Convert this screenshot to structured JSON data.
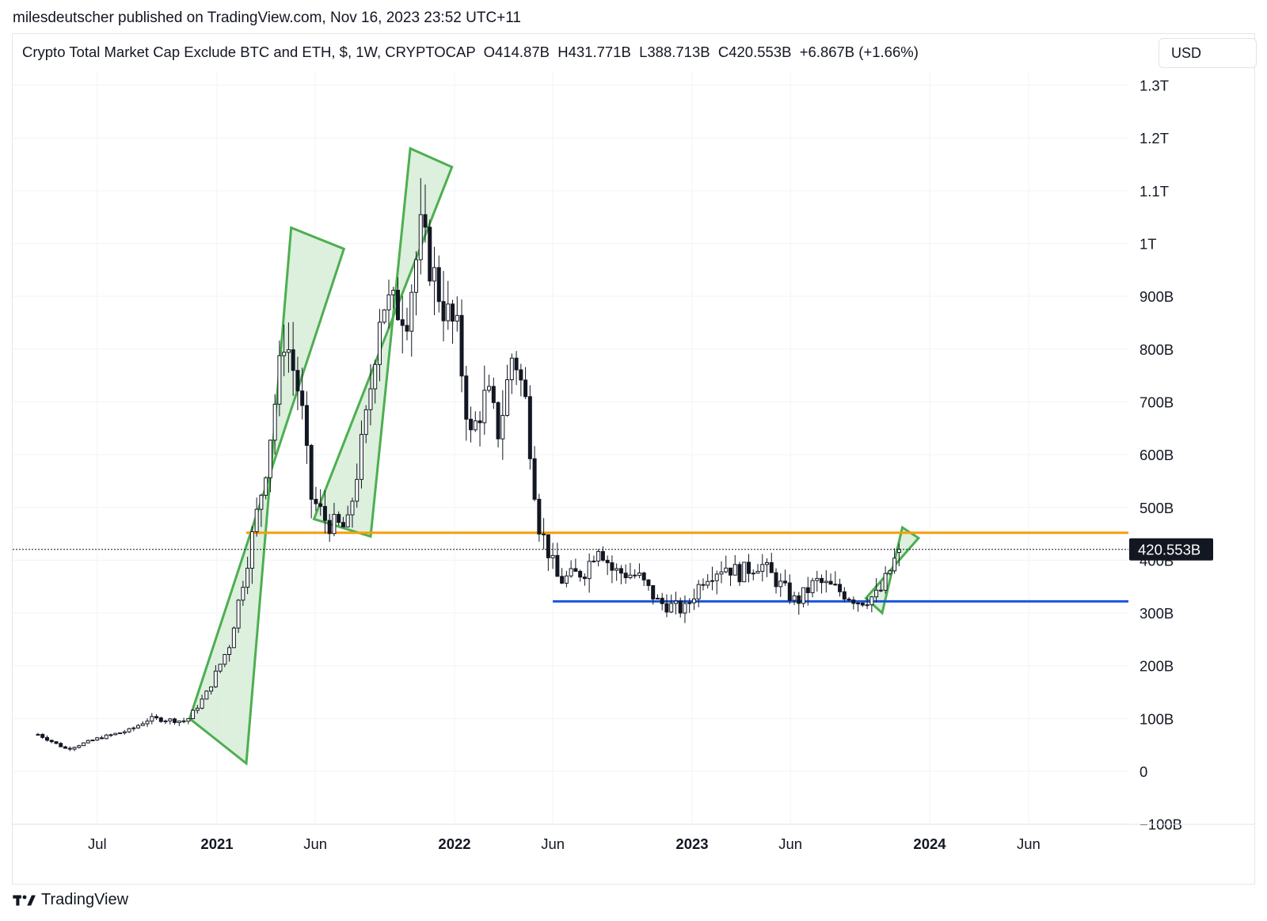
{
  "header": {
    "published_text": "milesdeutscher published on TradingView.com, Nov 16, 2023 23:52 UTC+11"
  },
  "legend": {
    "text": "Crypto Total Market Cap Exclude BTC and ETH, $, 1W, CRYPTOCAP  O414.87B  H431.771B  L388.713B  C420.553B  +6.867B (+1.66%)"
  },
  "currency_button": {
    "label": "USD"
  },
  "price_tag": {
    "label": "420.553B",
    "value_billions": 420.553
  },
  "footer": {
    "brand": "TradingView"
  },
  "colors": {
    "resistance": "#f59e0b",
    "support": "#1a56db",
    "channel_stroke": "#4caf50",
    "channel_fill": "#d7ecd7",
    "candle_up": "#ffffff",
    "candle_down": "#131722"
  },
  "chart_data": {
    "type": "candlestick",
    "timeframe": "1W",
    "y_axis": {
      "unit": "billions USD",
      "ticks": [
        {
          "value": 1300,
          "label": "1.3T"
        },
        {
          "value": 1200,
          "label": "1.2T"
        },
        {
          "value": 1100,
          "label": "1.1T"
        },
        {
          "value": 1000,
          "label": "1T"
        },
        {
          "value": 900,
          "label": "900B"
        },
        {
          "value": 800,
          "label": "800B"
        },
        {
          "value": 700,
          "label": "700B"
        },
        {
          "value": 600,
          "label": "600B"
        },
        {
          "value": 500,
          "label": "500B"
        },
        {
          "value": 400,
          "label": "400B"
        },
        {
          "value": 300,
          "label": "300B"
        },
        {
          "value": 200,
          "label": "200B"
        },
        {
          "value": 100,
          "label": "100B"
        },
        {
          "value": 0,
          "label": "0"
        },
        {
          "value": -100,
          "label": "−100B"
        }
      ]
    },
    "x_axis": {
      "ticks": [
        {
          "date": "2020-07-01",
          "label": "Jul",
          "bold": false
        },
        {
          "date": "2021-01-01",
          "label": "2021",
          "bold": true
        },
        {
          "date": "2021-06-01",
          "label": "Jun",
          "bold": false
        },
        {
          "date": "2022-01-01",
          "label": "2022",
          "bold": true
        },
        {
          "date": "2022-06-01",
          "label": "Jun",
          "bold": false
        },
        {
          "date": "2023-01-01",
          "label": "2023",
          "bold": true
        },
        {
          "date": "2023-06-01",
          "label": "Jun",
          "bold": false
        },
        {
          "date": "2024-01-01",
          "label": "2024",
          "bold": true
        },
        {
          "date": "2024-06-01",
          "label": "Jun",
          "bold": false
        }
      ]
    },
    "horizontal_lines": [
      {
        "name": "resistance",
        "value": 452,
        "from": "2021-02-15",
        "to": "2024-11-30"
      },
      {
        "name": "support",
        "value": 322,
        "from": "2022-06-01",
        "to": "2024-11-30"
      }
    ],
    "ohlc_anchors": [
      [
        "2020-04-01",
        70
      ],
      [
        "2020-05-15",
        42
      ],
      [
        "2020-07-01",
        62
      ],
      [
        "2020-08-20",
        78
      ],
      [
        "2020-09-20",
        100
      ],
      [
        "2020-11-15",
        95
      ],
      [
        "2020-12-15",
        145
      ],
      [
        "2021-01-20",
        240
      ],
      [
        "2021-02-15",
        390
      ],
      [
        "2021-03-15",
        560
      ],
      [
        "2021-04-15",
        830
      ],
      [
        "2021-05-10",
        700
      ],
      [
        "2021-05-25",
        520
      ],
      [
        "2021-06-20",
        470
      ],
      [
        "2021-07-20",
        460
      ],
      [
        "2021-08-20",
        680
      ],
      [
        "2021-09-10",
        890
      ],
      [
        "2021-10-20",
        870
      ],
      [
        "2021-11-10",
        1020
      ],
      [
        "2021-11-25",
        960
      ],
      [
        "2021-12-15",
        880
      ],
      [
        "2022-01-05",
        830
      ],
      [
        "2022-01-25",
        630
      ],
      [
        "2022-02-20",
        720
      ],
      [
        "2022-03-10",
        640
      ],
      [
        "2022-04-01",
        800
      ],
      [
        "2022-04-20",
        700
      ],
      [
        "2022-05-10",
        470
      ],
      [
        "2022-06-10",
        360
      ],
      [
        "2022-07-20",
        380
      ],
      [
        "2022-08-10",
        430
      ],
      [
        "2022-09-01",
        380
      ],
      [
        "2022-10-10",
        370
      ],
      [
        "2022-11-10",
        320
      ],
      [
        "2022-12-20",
        305
      ],
      [
        "2023-01-20",
        370
      ],
      [
        "2023-02-20",
        390
      ],
      [
        "2023-03-15",
        375
      ],
      [
        "2023-04-15",
        395
      ],
      [
        "2023-05-15",
        355
      ],
      [
        "2023-06-10",
        320
      ],
      [
        "2023-07-10",
        360
      ],
      [
        "2023-08-10",
        345
      ],
      [
        "2023-09-15",
        322
      ],
      [
        "2023-10-15",
        335
      ],
      [
        "2023-11-16",
        420.553
      ]
    ],
    "last_candle": {
      "open": 414.87,
      "high": 431.771,
      "low": 388.713,
      "close": 420.553
    },
    "annotations": [
      {
        "type": "parallel_channel",
        "name": "channel-2021-q1",
        "points": [
          [
            "2020-11-20",
            100
          ],
          [
            "2021-02-15",
            15
          ],
          [
            "2021-04-25",
            1030
          ],
          [
            "2021-07-15",
            990
          ]
        ]
      },
      {
        "type": "parallel_channel",
        "name": "channel-2021-q3",
        "points": [
          [
            "2021-05-30",
            478
          ],
          [
            "2021-08-25",
            445
          ],
          [
            "2021-10-25",
            1180
          ],
          [
            "2021-12-28",
            1145
          ]
        ]
      },
      {
        "type": "parallel_channel",
        "name": "channel-2023-q4",
        "points": [
          [
            "2023-09-25",
            328
          ],
          [
            "2023-10-20",
            300
          ],
          [
            "2023-11-20",
            462
          ],
          [
            "2023-12-15",
            442
          ]
        ]
      }
    ]
  }
}
